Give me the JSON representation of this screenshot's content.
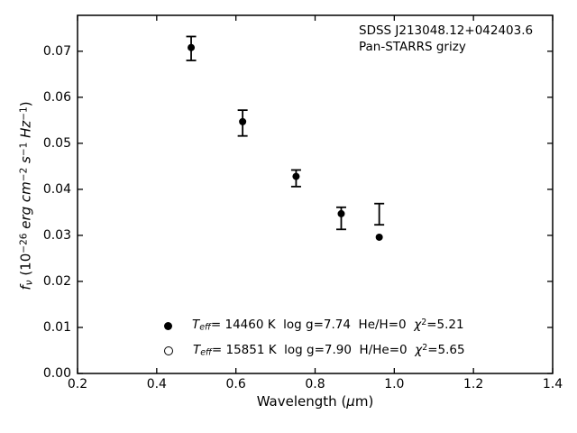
{
  "colors": {
    "foreground": "#000000",
    "background": "#ffffff",
    "marker": "#000000"
  },
  "chart_data": {
    "type": "scatter",
    "title": "",
    "annotation_lines": [
      "SDSS J213048.12+042403.6",
      "Pan-STARRS grizy"
    ],
    "xlabel": "Wavelength (μm)",
    "ylabel": "f_ν (10^−26 erg cm^−2 s^−1 Hz^−1)",
    "xlabel_rich": [
      {
        "t": "Wavelength (",
        "s": ""
      },
      {
        "t": "μ",
        "s": "i"
      },
      {
        "t": "m)",
        "s": ""
      }
    ],
    "ylabel_rich": [
      {
        "t": "f",
        "s": "i"
      },
      {
        "t": "ν",
        "s": "subi"
      },
      {
        "t": " (10",
        "s": ""
      },
      {
        "t": "−26",
        "s": "sup"
      },
      {
        "t": " erg cm",
        "s": "i"
      },
      {
        "t": "−2",
        "s": "sup"
      },
      {
        "t": " s",
        "s": "i"
      },
      {
        "t": "−1",
        "s": "sup"
      },
      {
        "t": " Hz",
        "s": "i"
      },
      {
        "t": "−1",
        "s": "sup"
      },
      {
        "t": ")",
        "s": ""
      }
    ],
    "xlim": [
      0.2,
      1.4
    ],
    "ylim": [
      0,
      0.0778
    ],
    "xticks": [
      0.2,
      0.4,
      0.6,
      0.8,
      1.0,
      1.2,
      1.4
    ],
    "xtick_labels": [
      "0.2",
      "0.4",
      "0.6",
      "0.8",
      "1.0",
      "1.2",
      "1.4"
    ],
    "yticks": [
      0.0,
      0.01,
      0.02,
      0.03,
      0.04,
      0.05,
      0.06,
      0.07
    ],
    "ytick_labels": [
      "0.00",
      "0.01",
      "0.02",
      "0.03",
      "0.04",
      "0.05",
      "0.06",
      "0.07"
    ],
    "grid": false,
    "tick_direction": "in",
    "ticks_on_all_sides": true,
    "series": [
      {
        "name": "observed-photometry",
        "marker": "errorbar",
        "color": "#000000",
        "x": [
          0.487,
          0.617,
          0.752,
          0.866,
          0.962
        ],
        "y": [
          0.0706,
          0.0544,
          0.0424,
          0.0337,
          0.0346
        ],
        "yerr": [
          0.0026,
          0.0028,
          0.0018,
          0.0024,
          0.0023
        ]
      },
      {
        "name": "model-1-synthetic-photometry",
        "marker": "filled-circle",
        "color": "#000000",
        "x": [
          0.487,
          0.617,
          0.752,
          0.866,
          0.962
        ],
        "y": [
          0.0708,
          0.0547,
          0.0428,
          0.0347,
          0.0296
        ]
      }
    ],
    "legend": {
      "frame": false,
      "position": "lower-left-inside",
      "entries": [
        {
          "marker": "filled-circle",
          "label": "T_eff= 14460 K  log g=7.74  He/H=0  χ²=5.21",
          "segments": [
            {
              "t": "T",
              "s": "i"
            },
            {
              "t": "eff",
              "s": "subi"
            },
            {
              "t": "= 14460 K  log g=7.74  He/H=0  ",
              "s": ""
            },
            {
              "t": "χ",
              "s": "i"
            },
            {
              "t": "2",
              "s": "sup"
            },
            {
              "t": "=5.21",
              "s": ""
            }
          ]
        },
        {
          "marker": "open-circle",
          "label": "T_eff= 15851 K  log g=7.90  H/He=0  χ²=5.65",
          "segments": [
            {
              "t": "T",
              "s": "i"
            },
            {
              "t": "eff",
              "s": "subi"
            },
            {
              "t": "= 15851 K  log g=7.90  H/He=0  ",
              "s": ""
            },
            {
              "t": "χ",
              "s": "i"
            },
            {
              "t": "2",
              "s": "sup"
            },
            {
              "t": "=5.65",
              "s": ""
            }
          ]
        }
      ]
    }
  }
}
